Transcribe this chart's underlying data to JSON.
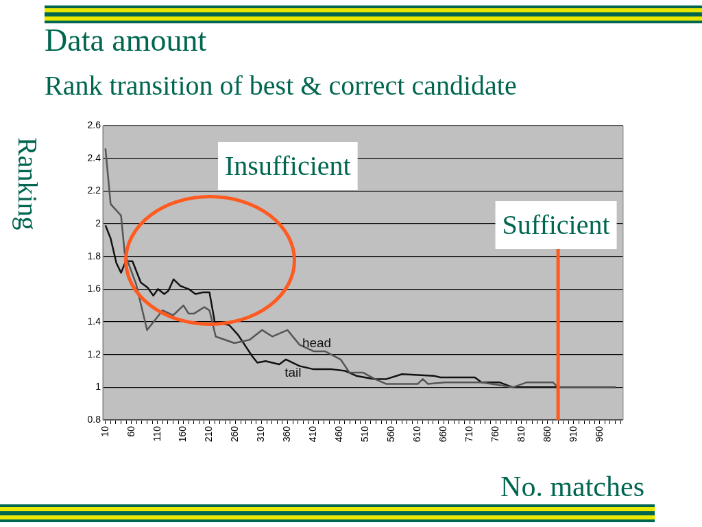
{
  "chart_data": {
    "type": "line",
    "title": "Data amount",
    "subtitle": "Rank transition of best & correct candidate",
    "xlabel": "No. matches",
    "ylabel": "Ranking",
    "annotations": [
      "Insufficient"
    ],
    "series": [
      {
        "name": "head",
        "color": "#555555",
        "x": [
          10,
          20,
          40,
          47,
          69,
          90,
          120,
          140,
          160,
          170,
          180,
          200,
          210,
          222,
          258,
          287,
          311,
          331,
          360,
          383,
          410,
          432,
          462,
          479,
          505,
          528,
          550,
          610,
          620,
          630,
          663,
          733,
          793,
          820,
          870,
          880,
          990
        ],
        "values": [
          2.46,
          2.12,
          2.05,
          1.82,
          1.63,
          1.35,
          1.47,
          1.44,
          1.5,
          1.45,
          1.45,
          1.49,
          1.47,
          1.31,
          1.27,
          1.29,
          1.35,
          1.31,
          1.35,
          1.26,
          1.22,
          1.22,
          1.17,
          1.09,
          1.09,
          1.05,
          1.02,
          1.02,
          1.05,
          1.02,
          1.03,
          1.03,
          1,
          1.03,
          1.03,
          1,
          1
        ]
      },
      {
        "name": "tail",
        "color": "#111111",
        "x": [
          10,
          20,
          31,
          40,
          49,
          62,
          78,
          91,
          102,
          111,
          123,
          131,
          141,
          154,
          170,
          183,
          197,
          210,
          220,
          248,
          265,
          292,
          302,
          318,
          344,
          357,
          383,
          410,
          445,
          471,
          492,
          527,
          550,
          580,
          641,
          654,
          720,
          733,
          767,
          793,
          990
        ],
        "values": [
          1.99,
          1.91,
          1.76,
          1.7,
          1.77,
          1.77,
          1.64,
          1.61,
          1.56,
          1.6,
          1.57,
          1.59,
          1.66,
          1.62,
          1.6,
          1.57,
          1.58,
          1.58,
          1.4,
          1.38,
          1.32,
          1.19,
          1.15,
          1.16,
          1.14,
          1.17,
          1.13,
          1.11,
          1.11,
          1.1,
          1.07,
          1.05,
          1.05,
          1.08,
          1.07,
          1.06,
          1.06,
          1.03,
          1.03,
          1,
          1
        ]
      }
    ],
    "xlim": [
      5,
      1005
    ],
    "xticks": [
      10,
      {
        "value": 20,
        "label": null
      },
      {
        "value": 30,
        "label": null
      },
      {
        "value": 40,
        "label": null
      },
      {
        "value": 50,
        "label": null
      },
      60,
      {
        "value": 70,
        "label": null
      },
      {
        "value": 80,
        "label": null
      },
      {
        "value": 90,
        "label": null
      },
      {
        "value": 100,
        "label": null
      },
      110,
      {
        "value": 120,
        "label": null
      },
      {
        "value": 130,
        "label": null
      },
      {
        "value": 140,
        "label": null
      },
      {
        "value": 150,
        "label": null
      },
      160,
      {
        "value": 170,
        "label": null
      },
      {
        "value": 180,
        "label": null
      },
      {
        "value": 190,
        "label": null
      },
      {
        "value": 200,
        "label": null
      },
      210,
      {
        "value": 220,
        "label": null
      },
      {
        "value": 230,
        "label": null
      },
      {
        "value": 240,
        "label": null
      },
      {
        "value": 250,
        "label": null
      },
      260,
      {
        "value": 270,
        "label": null
      },
      {
        "value": 280,
        "label": null
      },
      {
        "value": 290,
        "label": null
      },
      {
        "value": 300,
        "label": null
      },
      310,
      {
        "value": 320,
        "label": null
      },
      {
        "value": 330,
        "label": null
      },
      {
        "value": 340,
        "label": null
      },
      {
        "value": 350,
        "label": null
      },
      360,
      {
        "value": 370,
        "label": null
      },
      {
        "value": 380,
        "label": null
      },
      {
        "value": 390,
        "label": null
      },
      {
        "value": 400,
        "label": null
      },
      410,
      {
        "value": 420,
        "label": null
      },
      {
        "value": 430,
        "label": null
      },
      {
        "value": 440,
        "label": null
      },
      {
        "value": 450,
        "label": null
      },
      460,
      {
        "value": 470,
        "label": null
      },
      {
        "value": 480,
        "label": null
      },
      {
        "value": 490,
        "label": null
      },
      {
        "value": 500,
        "label": null
      },
      510,
      {
        "value": 520,
        "label": null
      },
      {
        "value": 530,
        "label": null
      },
      {
        "value": 540,
        "label": null
      },
      {
        "value": 550,
        "label": null
      },
      560,
      {
        "value": 570,
        "label": null
      },
      {
        "value": 580,
        "label": null
      },
      {
        "value": 590,
        "label": null
      },
      {
        "value": 600,
        "label": null
      },
      610,
      {
        "value": 620,
        "label": null
      },
      {
        "value": 630,
        "label": null
      },
      {
        "value": 640,
        "label": null
      },
      {
        "value": 650,
        "label": null
      },
      660,
      {
        "value": 670,
        "label": null
      },
      {
        "value": 680,
        "label": null
      },
      {
        "value": 690,
        "label": null
      },
      {
        "value": 700,
        "label": null
      },
      710,
      {
        "value": 720,
        "label": null
      },
      {
        "value": 730,
        "label": null
      },
      {
        "value": 740,
        "label": null
      },
      {
        "value": 750,
        "label": null
      },
      760,
      {
        "value": 770,
        "label": null
      },
      {
        "value": 780,
        "label": null
      },
      {
        "value": 790,
        "label": null
      },
      {
        "value": 800,
        "label": null
      },
      810,
      {
        "value": 820,
        "label": null
      },
      {
        "value": 830,
        "label": null
      },
      {
        "value": 840,
        "label": null
      },
      {
        "value": 850,
        "label": null
      },
      860,
      {
        "value": 870,
        "label": null
      },
      {
        "value": 880,
        "label": null
      },
      {
        "value": 890,
        "label": null
      },
      {
        "value": 900,
        "label": null
      },
      910,
      {
        "value": 920,
        "label": null
      },
      {
        "value": 930,
        "label": null
      },
      {
        "value": 940,
        "label": null
      },
      {
        "value": 950,
        "label": null
      },
      960,
      {
        "value": 970,
        "label": null
      },
      {
        "value": 980,
        "label": null
      },
      {
        "value": 990,
        "label": null
      },
      {
        "value": 1000,
        "label": null
      }
    ],
    "ylim": [
      0.8,
      2.6
    ],
    "yticks": [
      0.8,
      1,
      1.2,
      1.4,
      1.6,
      1.8,
      2,
      2.2,
      2.4,
      2.6
    ],
    "grid": "y",
    "legend": false,
    "marker": "none",
    "line_style": "solid",
    "ref_lines": [
      {
        "axis": "x",
        "value": 880,
        "label": "Sufficient",
        "color": "#ff5a1f"
      }
    ]
  }
}
